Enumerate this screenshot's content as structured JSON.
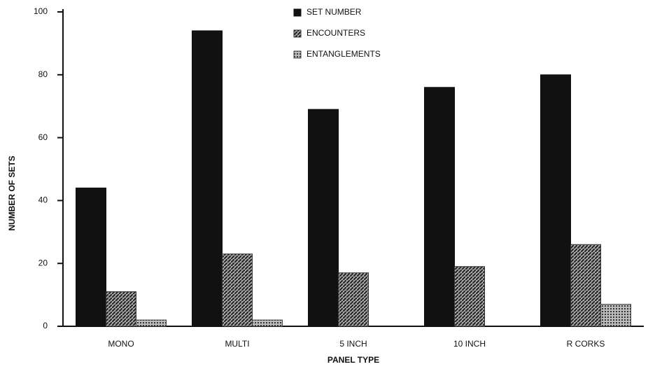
{
  "chart_data": {
    "type": "bar",
    "x_label": "PANEL TYPE",
    "y_label": "NUMBER OF SETS",
    "categories": [
      "MONO",
      "MULTI",
      "5 INCH",
      "10 INCH",
      "R CORKS"
    ],
    "series": [
      {
        "name": "SET NUMBER",
        "color": "#111111",
        "values": [
          44,
          94,
          69,
          76,
          80
        ]
      },
      {
        "name": "ENCOUNTERS",
        "color": "#333333",
        "values": [
          11,
          23,
          17,
          19,
          26
        ]
      },
      {
        "name": "ENTANGLEMENTS",
        "color": "#444444",
        "values": [
          2,
          2,
          0,
          0,
          7
        ]
      }
    ],
    "ylim": [
      0,
      100
    ],
    "yticks": [
      0,
      20,
      40,
      60,
      80,
      100
    ],
    "legend": "top"
  }
}
